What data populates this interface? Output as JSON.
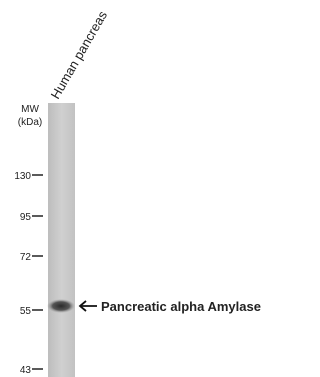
{
  "lane_label": "Human pancreas",
  "mw_label": [
    "MW",
    "(kDa)"
  ],
  "markers": [
    "130",
    "95",
    "72",
    "55",
    "43"
  ],
  "band_label": "Pancreatic alpha Amylase"
}
